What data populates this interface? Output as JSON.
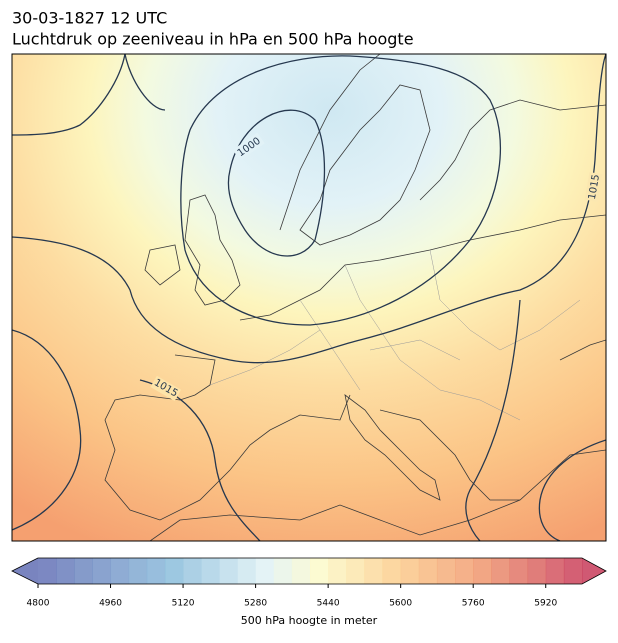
{
  "title": [
    "30-03-1827 12 UTC",
    "Luchtdruk op zeeniveau in hPa en 500 hPa hoogte"
  ],
  "map": {
    "contour_labels": [
      1000,
      1015,
      1015
    ]
  },
  "colorbar": {
    "label": "500 hPa hoogte in meter",
    "lim": [
      4800,
      6000
    ],
    "ticks": [
      4800,
      4960,
      5120,
      5280,
      5440,
      5600,
      5760,
      5920
    ]
  }
}
